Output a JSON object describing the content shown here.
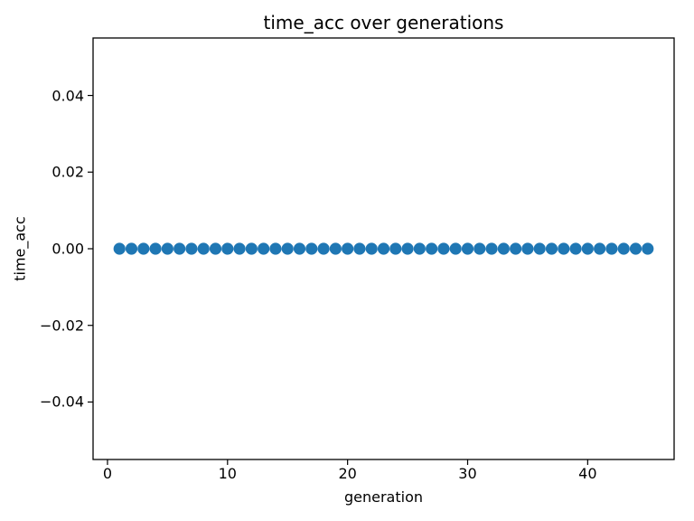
{
  "figure": {
    "title": "time_acc over generations",
    "xlabel": "generation",
    "ylabel": "time_acc"
  },
  "chart_data": {
    "type": "scatter",
    "title": "time_acc over generations",
    "xlabel": "generation",
    "ylabel": "time_acc",
    "x": [
      1,
      2,
      3,
      4,
      5,
      6,
      7,
      8,
      9,
      10,
      11,
      12,
      13,
      14,
      15,
      16,
      17,
      18,
      19,
      20,
      21,
      22,
      23,
      24,
      25,
      26,
      27,
      28,
      29,
      30,
      31,
      32,
      33,
      34,
      35,
      36,
      37,
      38,
      39,
      40,
      41,
      42,
      43,
      44,
      45
    ],
    "y": [
      0,
      0,
      0,
      0,
      0,
      0,
      0,
      0,
      0,
      0,
      0,
      0,
      0,
      0,
      0,
      0,
      0,
      0,
      0,
      0,
      0,
      0,
      0,
      0,
      0,
      0,
      0,
      0,
      0,
      0,
      0,
      0,
      0,
      0,
      0,
      0,
      0,
      0,
      0,
      0,
      0,
      0,
      0,
      0,
      0
    ],
    "xlim": [
      -1.2,
      47.2
    ],
    "ylim": [
      -0.055,
      0.055
    ],
    "xticks": {
      "values": [
        0,
        10,
        20,
        30,
        40
      ],
      "labels": [
        "0",
        "10",
        "20",
        "30",
        "40"
      ]
    },
    "yticks": {
      "values": [
        -0.04,
        -0.02,
        0.0,
        0.02,
        0.04
      ],
      "labels": [
        "−0.04",
        "−0.02",
        "0.00",
        "0.02",
        "0.04"
      ]
    },
    "marker_color": "#1f77b4",
    "marker_diameter_px": 13.2,
    "spine_color": "#000000",
    "background_color": "#ffffff",
    "grid": false
  }
}
